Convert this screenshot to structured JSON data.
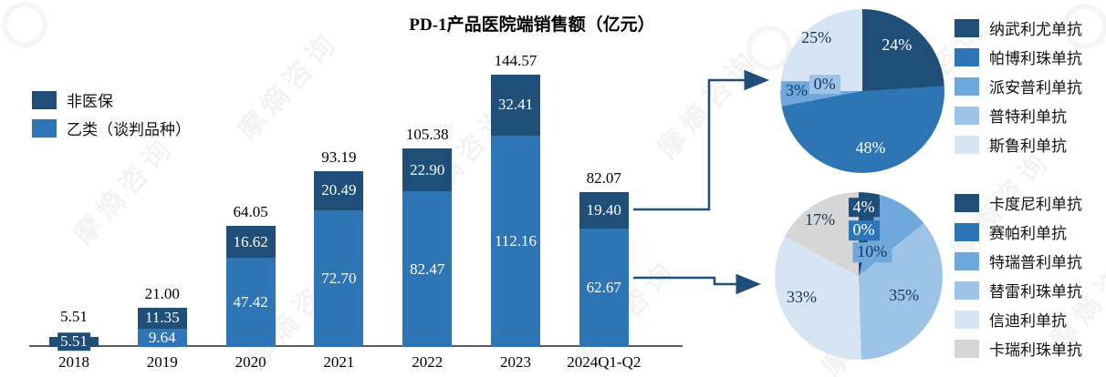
{
  "watermark": {
    "text": "摩熵咨询"
  },
  "colors": {
    "dark_navy": "#1F4E79",
    "medium_blue": "#2E75B6",
    "light_medium_blue": "#6FA8DC",
    "light_blue": "#9DC3E6",
    "pale_blue": "#D6E4F4",
    "gray": "#D6D6D6",
    "axis": "#5B5B5B",
    "arrow": "#1F4E79"
  },
  "chart_data": [
    {
      "type": "bar",
      "stacked": true,
      "title": "PD-1产品医院端销售额（亿元）",
      "unit": "亿元",
      "categories": [
        "2018",
        "2019",
        "2020",
        "2021",
        "2022",
        "2023",
        "2024Q1-Q2"
      ],
      "series": [
        {
          "name": "非医保",
          "color": "#1F4E79",
          "values": [
            5.51,
            11.35,
            16.62,
            20.49,
            22.9,
            32.41,
            19.4
          ],
          "labels": [
            "5.51",
            "11.35",
            "16.62",
            "20.49",
            "22.90",
            "32.41",
            "19.40"
          ]
        },
        {
          "name": "乙类（谈判品种）",
          "color": "#2E75B6",
          "values": [
            0,
            9.64,
            47.42,
            72.7,
            82.47,
            112.16,
            62.67
          ],
          "labels": [
            "",
            "9.64",
            "47.42",
            "72.70",
            "82.47",
            "112.16",
            "62.67"
          ]
        }
      ],
      "totals": [
        "5.51",
        "21.00",
        "64.05",
        "93.19",
        "105.38",
        "144.57",
        "82.07"
      ],
      "legend": [
        {
          "label": "非医保",
          "color": "#1F4E79"
        },
        {
          "label": "乙类（谈判品种）",
          "color": "#2E75B6"
        }
      ],
      "ylim": [
        0,
        150
      ],
      "grid": false
    },
    {
      "type": "pie",
      "slices": [
        {
          "label": "纳武利尤单抗",
          "pct": 24,
          "pct_label": "24%",
          "color": "#1F4E79",
          "boxed": false,
          "label_at": [
            0.71,
            0.22
          ]
        },
        {
          "label": "帕博利珠单抗",
          "pct": 48,
          "pct_label": "48%",
          "color": "#2E75B6",
          "boxed": false,
          "label_at": [
            0.55,
            0.85
          ]
        },
        {
          "label": "派安普利单抗",
          "pct": 3,
          "pct_label": "3%",
          "color": "#6FA8DC",
          "boxed": true,
          "label_at": [
            0.1,
            0.5
          ]
        },
        {
          "label": "普特利单抗",
          "pct": 0,
          "pct_label": "0%",
          "color": "#9DC3E6",
          "boxed": true,
          "label_at": [
            0.27,
            0.46
          ]
        },
        {
          "label": "斯鲁利单抗",
          "pct": 25,
          "pct_label": "25%",
          "color": "#D6E4F4",
          "boxed": false,
          "label_at": [
            0.22,
            0.18
          ]
        }
      ],
      "legend_position": "right",
      "start_angle_deg": 0,
      "direction": "clockwise"
    },
    {
      "type": "pie",
      "slices": [
        {
          "label": "卡度尼利单抗",
          "pct": 4,
          "pct_label": "4%",
          "color": "#1F4E79",
          "boxed": true,
          "label_at": [
            0.53,
            0.09
          ]
        },
        {
          "label": "赛帕利单抗",
          "pct": 0,
          "pct_label": "0%",
          "color": "#2E75B6",
          "boxed": true,
          "label_at": [
            0.53,
            0.23
          ]
        },
        {
          "label": "特瑞普利单抗",
          "pct": 10,
          "pct_label": "10%",
          "color": "#6FA8DC",
          "boxed": true,
          "label_at": [
            0.58,
            0.36
          ]
        },
        {
          "label": "替雷利珠单抗",
          "pct": 35,
          "pct_label": "35%",
          "color": "#9DC3E6",
          "boxed": false,
          "label_at": [
            0.77,
            0.62
          ]
        },
        {
          "label": "信迪利单抗",
          "pct": 33,
          "pct_label": "33%",
          "color": "#D6E4F4",
          "boxed": false,
          "label_at": [
            0.16,
            0.63
          ]
        },
        {
          "label": "卡瑞利珠单抗",
          "pct": 17,
          "pct_label": "17%",
          "color": "#D6D6D6",
          "boxed": false,
          "label_at": [
            0.27,
            0.17
          ]
        }
      ],
      "legend_position": "right",
      "start_angle_deg": 0,
      "direction": "clockwise"
    }
  ]
}
